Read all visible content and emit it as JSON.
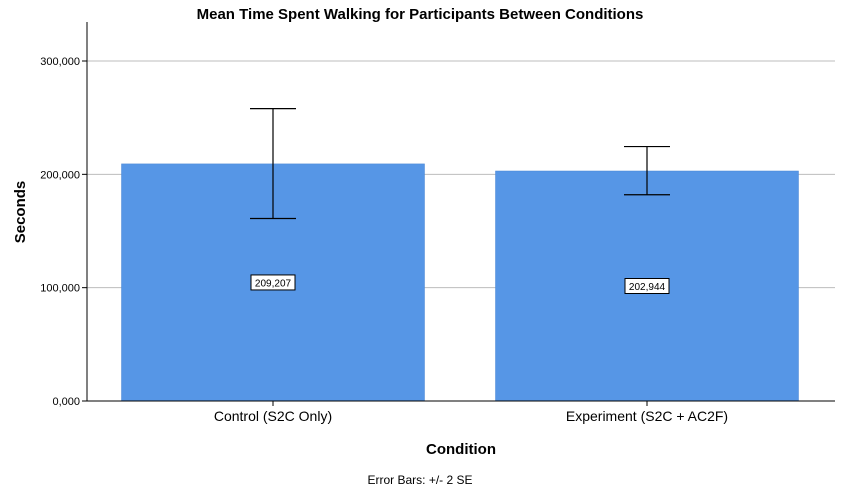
{
  "chart_data": {
    "type": "bar",
    "title": "Mean Time Spent Walking for Participants Between Conditions",
    "xlabel": "Condition",
    "ylabel": "Seconds",
    "categories": [
      "Control (S2C Only)",
      "Experiment (S2C + AC2F)"
    ],
    "values": [
      209.207,
      202.944
    ],
    "value_labels": [
      "209,207",
      "202,944"
    ],
    "error_bars": {
      "lower": [
        161,
        182
      ],
      "upper": [
        258,
        224.5
      ]
    },
    "ylim": [
      0,
      300
    ],
    "yticks": [
      0,
      100,
      200,
      300
    ],
    "ytick_labels": [
      "0,000",
      "100,000",
      "200,000",
      "300,000"
    ],
    "grid": true,
    "footnote": "Error Bars: +/- 2 SE",
    "colors": {
      "bar": "#5696e6",
      "bar_edge": "#4a86d4",
      "grid": "#bdbdbd",
      "axis": "#000000"
    }
  }
}
